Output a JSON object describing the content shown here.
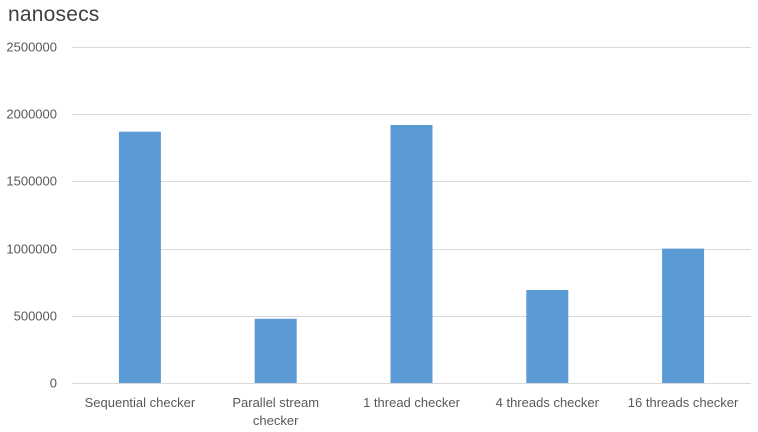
{
  "chart_data": {
    "type": "bar",
    "title": "nanosecs",
    "xlabel": "",
    "ylabel": "",
    "categories": [
      "Sequential checker",
      "Parallel stream checker",
      "1 thread checker",
      "4 threads checker",
      "16 threads checker"
    ],
    "category_label_lines": [
      [
        "Sequential checker"
      ],
      [
        "Parallel stream",
        "checker"
      ],
      [
        "1 thread checker"
      ],
      [
        "4 threads checker"
      ],
      [
        "16 threads checker"
      ]
    ],
    "values": [
      1870000,
      478000,
      1920000,
      692000,
      1000000
    ],
    "ylim": [
      0,
      2500000
    ],
    "yticks": [
      0,
      500000,
      1000000,
      1500000,
      2000000,
      2500000
    ],
    "ytick_labels": [
      "0",
      "500000",
      "1000000",
      "1500000",
      "2000000",
      "2500000"
    ],
    "grid": true,
    "legend": "none",
    "bar_color": "#5b9bd5",
    "grid_color": "#d9d9d9"
  }
}
